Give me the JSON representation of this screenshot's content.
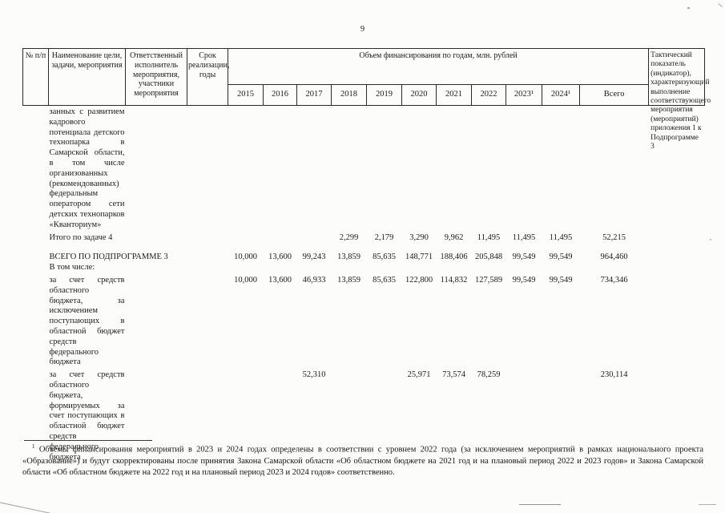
{
  "page": {
    "number": "9"
  },
  "table": {
    "headers": {
      "col_num": "№ п/п",
      "col_name": "Наименование цели, задачи, мероприятия",
      "col_executor": "Ответственный исполнитель мероприятия, участники мероприятия",
      "col_term": "Срок реализации, годы",
      "col_financing": "Объем финансирования по годам, млн. рублей",
      "col_indicator": "Тактический показатель (индикатор), характеризующий выполнение соответствующего мероприятия (мероприятий) приложения 1 к Подпрограмме 3",
      "years": [
        "2015",
        "2016",
        "2017",
        "2018",
        "2019",
        "2020",
        "2021",
        "2022",
        "2023¹",
        "2024¹",
        "Всего"
      ]
    },
    "rows": [
      {
        "id": "task4-continuation",
        "name": "занных с развитием кадрового потенциала детского технопарка в Самарской области, в том числе организованных (рекомендованных) федеральным оператором сети детских технопарков «Кванториум»",
        "values": [
          "",
          "",
          "",
          "",
          "",
          "",
          "",
          "",
          "",
          "",
          ""
        ]
      },
      {
        "id": "itogo-task4",
        "name": "Итого по задаче 4",
        "nowrap": true,
        "values": [
          "",
          "",
          "",
          "2,299",
          "2,179",
          "3,290",
          "9,962",
          "11,495",
          "11,495",
          "11,495",
          "52,215"
        ]
      },
      {
        "id": "vsego-podprogramme3",
        "name": "ВСЕГО ПО ПОДПРОГРАММЕ 3",
        "nowrap": true,
        "values": [
          "10,000",
          "13,600",
          "99,243",
          "13,859",
          "85,635",
          "148,771",
          "188,406",
          "205,848",
          "99,549",
          "99,549",
          "964,460"
        ]
      },
      {
        "id": "v-tom-chisle",
        "name": "В том числе:",
        "nowrap": true,
        "values": [
          "",
          "",
          "",
          "",
          "",
          "",
          "",
          "",
          "",
          "",
          ""
        ]
      },
      {
        "id": "oblastnoy-budget",
        "name": "за счет средств областного бюджета, за исключением поступающих в областной бюджет средств федерального бюджета",
        "values": [
          "10,000",
          "13,600",
          "46,933",
          "13,859",
          "85,635",
          "122,800",
          "114,832",
          "127,589",
          "99,549",
          "99,549",
          "734,346"
        ]
      },
      {
        "id": "federalny-budget",
        "name": "за счет средств областного бюджета, формируемых за счет поступающих в областной бюджет средств федерального бюджета",
        "values": [
          "",
          "",
          "52,310",
          "",
          "",
          "25,971",
          "73,574",
          "78,259",
          "",
          "",
          "230,114"
        ]
      }
    ]
  },
  "footnote": {
    "marker": "1",
    "text": "Объемы финансирования мероприятий в 2023 и 2024 годах определены в соответствии с уровнем 2022 года (за исключением мероприятий в рамках национального проекта «Образование») и будут скорректированы после принятия Закона Самарской области «Об областном бюджете на 2021 год и на плановый период 2022 и 2023 годов» и Закона Самарской области «Об областном бюджете на 2022 год и на плановый период 2023 и 2024 годов» соответственно."
  }
}
